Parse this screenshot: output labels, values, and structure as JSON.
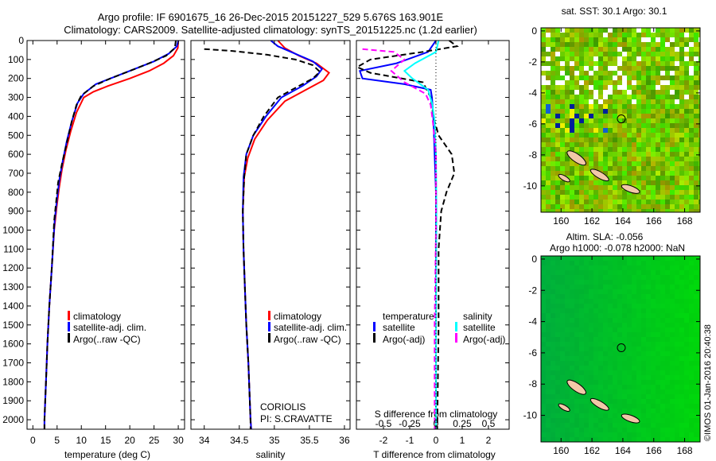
{
  "title": {
    "line1": "Argo profile: IF 6901675_16 26-Dec-2015 20151227_529 5.676S 163.901E",
    "line2": "Climatology: CARS2009. Satellite-adjusted climatology: synTS_20151225.nc (1.2d earlier)"
  },
  "credit": "©IMOS 01-Jan-2016 20:40:38",
  "colors": {
    "climatology": "#ff0000",
    "satellite": "#0000ff",
    "argo": "#000000",
    "sal_satellite": "#00ffff",
    "sal_argo": "#ff00ff"
  },
  "chart_data": [
    {
      "type": "line",
      "name": "temperature",
      "xlabel": "temperature (deg C)",
      "ylabel": "",
      "xlim": [
        -1.2,
        31.3
      ],
      "ylim": [
        2050,
        0
      ],
      "xticks": [
        0,
        5,
        10,
        15,
        20,
        25,
        30
      ],
      "yticks": [
        0,
        100,
        200,
        300,
        400,
        500,
        600,
        700,
        800,
        900,
        1000,
        1100,
        1200,
        1300,
        1400,
        1500,
        1600,
        1700,
        1800,
        1900,
        2000
      ],
      "legend": [
        "climatology",
        "satellite-adj. clim.",
        "Argo(..raw -QC)"
      ],
      "series": [
        {
          "name": "climatology",
          "color": "#ff0000",
          "dash": false,
          "points": [
            [
              30,
              0
            ],
            [
              29.9,
              40
            ],
            [
              29,
              80
            ],
            [
              27,
              120
            ],
            [
              24,
              160
            ],
            [
              20,
              200
            ],
            [
              15.5,
              240
            ],
            [
              12.5,
              270
            ],
            [
              10.5,
              300
            ],
            [
              9,
              380
            ],
            [
              7.8,
              480
            ],
            [
              6.8,
              580
            ],
            [
              6,
              680
            ],
            [
              5.4,
              780
            ],
            [
              4.9,
              880
            ],
            [
              4.4,
              1000
            ],
            [
              3.9,
              1200
            ],
            [
              3.4,
              1400
            ],
            [
              3,
              1600
            ],
            [
              2.7,
              1800
            ],
            [
              2.4,
              2000
            ],
            [
              2.4,
              2050
            ]
          ]
        },
        {
          "name": "satellite-adj. clim.",
          "color": "#0000ff",
          "dash": false,
          "points": [
            [
              30,
              0
            ],
            [
              29.7,
              30
            ],
            [
              28,
              70
            ],
            [
              25,
              110
            ],
            [
              21,
              150
            ],
            [
              17,
              190
            ],
            [
              13,
              230
            ],
            [
              10.5,
              280
            ],
            [
              9.2,
              330
            ],
            [
              8,
              430
            ],
            [
              7,
              530
            ],
            [
              6.2,
              630
            ],
            [
              5.5,
              730
            ],
            [
              5,
              830
            ],
            [
              4.5,
              950
            ],
            [
              3.9,
              1200
            ],
            [
              3.4,
              1400
            ],
            [
              3,
              1600
            ],
            [
              2.7,
              1800
            ],
            [
              2.4,
              2000
            ],
            [
              2.4,
              2050
            ]
          ]
        },
        {
          "name": "Argo(..raw -QC)",
          "color": "#000000",
          "dash": true,
          "points": [
            [
              29.5,
              0
            ],
            [
              29.3,
              40
            ],
            [
              27.5,
              80
            ],
            [
              24,
              120
            ],
            [
              20,
              160
            ],
            [
              16,
              200
            ],
            [
              12.5,
              240
            ],
            [
              10,
              290
            ],
            [
              9,
              340
            ],
            [
              8,
              430
            ],
            [
              7,
              540
            ],
            [
              6,
              650
            ],
            [
              5.2,
              750
            ],
            [
              4.8,
              850
            ],
            [
              4.4,
              950
            ],
            [
              3.9,
              1200
            ],
            [
              3.4,
              1400
            ],
            [
              3,
              1600
            ],
            [
              2.7,
              1800
            ],
            [
              2.4,
              2000
            ],
            [
              2.4,
              2050
            ]
          ]
        }
      ]
    },
    {
      "type": "line",
      "name": "salinity",
      "xlabel": "salinity",
      "xlim": [
        33.81,
        36.08
      ],
      "ylim": [
        2050,
        0
      ],
      "xticks": [
        34,
        34.5,
        35,
        35.5,
        36
      ],
      "legend": [
        "climatology",
        "satellite-adj. clim.",
        "Argo(..raw -QC)"
      ],
      "annotations": [
        "CORIOLIS",
        "PI: S.CRAVATTE"
      ],
      "series": [
        {
          "name": "climatology",
          "color": "#ff0000",
          "dash": false,
          "points": [
            [
              35.05,
              0
            ],
            [
              35.15,
              40
            ],
            [
              35.35,
              80
            ],
            [
              35.6,
              120
            ],
            [
              35.78,
              170
            ],
            [
              35.7,
              210
            ],
            [
              35.45,
              260
            ],
            [
              35.15,
              320
            ],
            [
              34.9,
              420
            ],
            [
              34.72,
              520
            ],
            [
              34.62,
              620
            ],
            [
              34.57,
              720
            ],
            [
              34.55,
              900
            ],
            [
              34.56,
              1100
            ],
            [
              34.58,
              1300
            ],
            [
              34.6,
              1500
            ],
            [
              34.63,
              1700
            ],
            [
              34.66,
              2000
            ],
            [
              34.67,
              2050
            ]
          ]
        },
        {
          "name": "satellite-adj. clim.",
          "color": "#0000ff",
          "dash": false,
          "points": [
            [
              34.95,
              0
            ],
            [
              35.05,
              30
            ],
            [
              35.3,
              70
            ],
            [
              35.55,
              110
            ],
            [
              35.68,
              150
            ],
            [
              35.6,
              190
            ],
            [
              35.4,
              240
            ],
            [
              35.1,
              300
            ],
            [
              34.88,
              400
            ],
            [
              34.7,
              500
            ],
            [
              34.6,
              600
            ],
            [
              34.56,
              720
            ],
            [
              34.55,
              900
            ],
            [
              34.56,
              1100
            ],
            [
              34.58,
              1300
            ],
            [
              34.6,
              1500
            ],
            [
              34.63,
              1700
            ],
            [
              34.66,
              2000
            ],
            [
              34.67,
              2050
            ]
          ]
        },
        {
          "name": "Argo(..raw -QC)",
          "color": "#000000",
          "dash": true,
          "points": [
            [
              34.0,
              45
            ],
            [
              34.4,
              55
            ],
            [
              34.9,
              75
            ],
            [
              35.3,
              100
            ],
            [
              35.55,
              130
            ],
            [
              35.65,
              165
            ],
            [
              35.55,
              200
            ],
            [
              35.3,
              250
            ],
            [
              35.05,
              300
            ],
            [
              34.85,
              400
            ],
            [
              34.7,
              500
            ],
            [
              34.6,
              600
            ],
            [
              34.57,
              720
            ],
            [
              34.55,
              900
            ],
            [
              34.56,
              1100
            ],
            [
              34.58,
              1300
            ],
            [
              34.6,
              1500
            ],
            [
              34.63,
              1700
            ],
            [
              34.66,
              2000
            ],
            [
              34.66,
              2050
            ]
          ]
        }
      ]
    },
    {
      "type": "line",
      "name": "difference",
      "xlabel": "T difference from climatology",
      "x2label": "S difference from climatology",
      "xlim": [
        -3.03,
        2.79
      ],
      "ylim": [
        2050,
        0
      ],
      "xticks": [
        -2,
        -1,
        0,
        1,
        2
      ],
      "x2ticks": [
        "-0.5",
        "-0.25",
        "0",
        "0.25",
        "0.5"
      ],
      "legend_titles": [
        "temperature",
        "salinity"
      ],
      "legend": [
        "satellite",
        "Argo(-adj)",
        "satellite",
        "Argo(-adj)"
      ],
      "series": [
        {
          "name": "T satellite",
          "color": "#0000ff",
          "dash": false,
          "points": [
            [
              0,
              0
            ],
            [
              -0.3,
              60
            ],
            [
              -1.5,
              120
            ],
            [
              -2.9,
              160
            ],
            [
              -2.8,
              200
            ],
            [
              -1.2,
              230
            ],
            [
              -0.2,
              260
            ],
            [
              -0.15,
              300
            ],
            [
              -0.1,
              400
            ],
            [
              -0.05,
              600
            ],
            [
              0,
              800
            ],
            [
              0,
              1000
            ],
            [
              0,
              1500
            ],
            [
              0,
              2050
            ]
          ]
        },
        {
          "name": "T Argo(-adj)",
          "color": "#000000",
          "dash": true,
          "points": [
            [
              0.5,
              0
            ],
            [
              0.8,
              30
            ],
            [
              -0.5,
              60
            ],
            [
              -2.5,
              100
            ],
            [
              -3,
              140
            ],
            [
              -2.5,
              170
            ],
            [
              -0.5,
              220
            ],
            [
              -0.2,
              300
            ],
            [
              -0.1,
              400
            ],
            [
              0.1,
              500
            ],
            [
              0.6,
              600
            ],
            [
              0.7,
              700
            ],
            [
              0.4,
              800
            ],
            [
              0.2,
              900
            ],
            [
              0.1,
              1100
            ],
            [
              0.1,
              1500
            ],
            [
              0.05,
              2050
            ]
          ]
        },
        {
          "name": "S satellite",
          "color": "#00ffff",
          "dash": false,
          "points": [
            [
              0.1,
              0
            ],
            [
              0.0,
              60
            ],
            [
              -0.8,
              120
            ],
            [
              -1.2,
              160
            ],
            [
              -0.9,
              200
            ],
            [
              -0.3,
              260
            ],
            [
              -0.15,
              330
            ],
            [
              -0.05,
              420
            ],
            [
              0,
              600
            ],
            [
              0.02,
              900
            ],
            [
              0,
              1500
            ],
            [
              0,
              2050
            ]
          ]
        },
        {
          "name": "S Argo(-adj)",
          "color": "#ff00ff",
          "dash": true,
          "points": [
            [
              -2.8,
              45
            ],
            [
              -1.6,
              60
            ],
            [
              -1.2,
              100
            ],
            [
              -1.7,
              160
            ],
            [
              -1.2,
              220
            ],
            [
              -0.4,
              280
            ],
            [
              -0.2,
              340
            ],
            [
              -0.1,
              450
            ],
            [
              0,
              600
            ],
            [
              0,
              1000
            ],
            [
              -0.05,
              1500
            ],
            [
              -0.05,
              2050
            ]
          ]
        }
      ]
    },
    {
      "type": "heatmap",
      "name": "sst-map",
      "title": "sat. SST: 30.1 Argo: 30.1",
      "xlim": [
        158.7,
        169
      ],
      "ylim": [
        -11.7,
        0.2
      ],
      "xticks": [
        160,
        162,
        164,
        166,
        168
      ],
      "yticks": [
        0,
        -2,
        -4,
        -6,
        -8,
        -10
      ],
      "argo_position": [
        163.901,
        -5.676
      ]
    },
    {
      "type": "heatmap",
      "name": "sla-map",
      "title": "Altim. SLA: -0.056",
      "subtitle": "Argo h1000: -0.078 h2000: NaN",
      "xlim": [
        158.7,
        169
      ],
      "ylim": [
        -11.7,
        0.2
      ],
      "xticks": [
        160,
        162,
        164,
        166,
        168
      ],
      "yticks": [
        0,
        -2,
        -4,
        -6,
        -8,
        -10
      ],
      "argo_position": [
        163.901,
        -5.676
      ]
    }
  ]
}
